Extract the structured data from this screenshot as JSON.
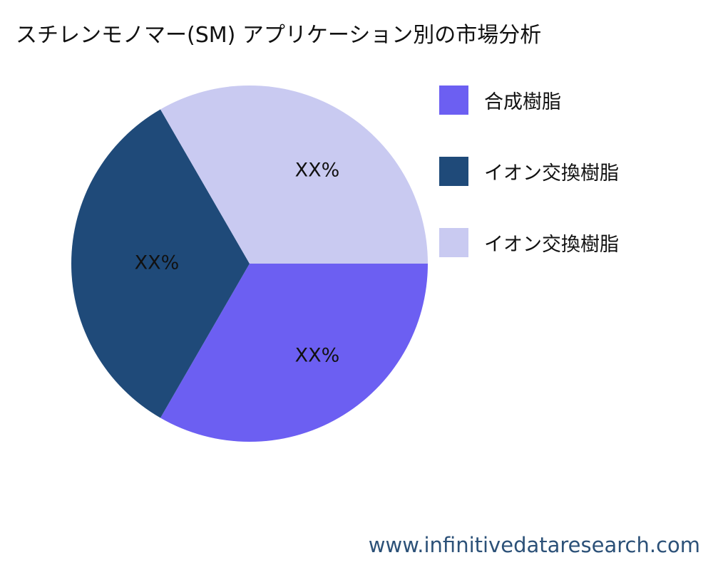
{
  "chart_data": {
    "type": "pie",
    "title": "スチレンモノマー(SM) アプリケーション別の市場分析",
    "slices": [
      {
        "label": "合成樹脂",
        "value": 33.33,
        "data_label": "XX%",
        "color": "#6c5ff2"
      },
      {
        "label": "イオン交換樹脂",
        "value": 33.33,
        "data_label": "XX%",
        "color": "#1f4a79"
      },
      {
        "label": "イオン交換樹脂",
        "value": 33.33,
        "data_label": "XX%",
        "color": "#c9caf1"
      }
    ],
    "legend_placement": "right"
  },
  "watermark": "www.infinitivedataresearch.com"
}
